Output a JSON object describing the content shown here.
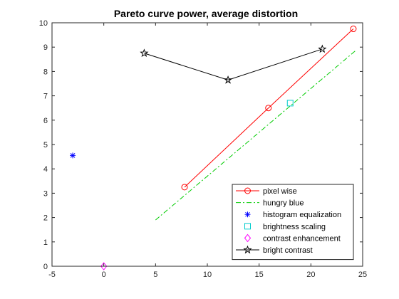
{
  "chart_data": {
    "type": "line",
    "title": "Pareto curve power, average distortion",
    "xlabel": "",
    "ylabel": "",
    "xlim": [
      -5,
      25
    ],
    "ylim": [
      0,
      10
    ],
    "xticks": [
      -5,
      0,
      5,
      10,
      15,
      20,
      25
    ],
    "yticks": [
      0,
      1,
      2,
      3,
      4,
      5,
      6,
      7,
      8,
      9,
      10
    ],
    "grid": false,
    "legend_position": "bottom-right",
    "series": [
      {
        "name": "pixel wise",
        "color": "#ff0000",
        "line": "solid",
        "marker": "circle",
        "x": [
          7.8,
          15.9,
          24.1
        ],
        "y": [
          3.25,
          6.5,
          9.75
        ]
      },
      {
        "name": "hungry blue",
        "color": "#00cc00",
        "line": "dashdot",
        "marker": "none",
        "x": [
          5.0,
          24.3
        ],
        "y": [
          1.9,
          8.85
        ]
      },
      {
        "name": "histogram equalization",
        "color": "#0000ff",
        "line": "none",
        "marker": "asterisk",
        "x": [
          -3.0
        ],
        "y": [
          4.55
        ]
      },
      {
        "name": "brightness scaling",
        "color": "#00cccc",
        "line": "none",
        "marker": "square",
        "x": [
          18.0
        ],
        "y": [
          6.7
        ]
      },
      {
        "name": "contrast enhancement",
        "color": "#ff00ff",
        "line": "none",
        "marker": "diamond",
        "x": [
          0.0
        ],
        "y": [
          0.0
        ]
      },
      {
        "name": "bright contrast",
        "color": "#000000",
        "line": "solid",
        "marker": "pentagram",
        "x": [
          3.9,
          12.0,
          21.1
        ],
        "y": [
          8.75,
          7.65,
          8.92
        ]
      }
    ]
  }
}
